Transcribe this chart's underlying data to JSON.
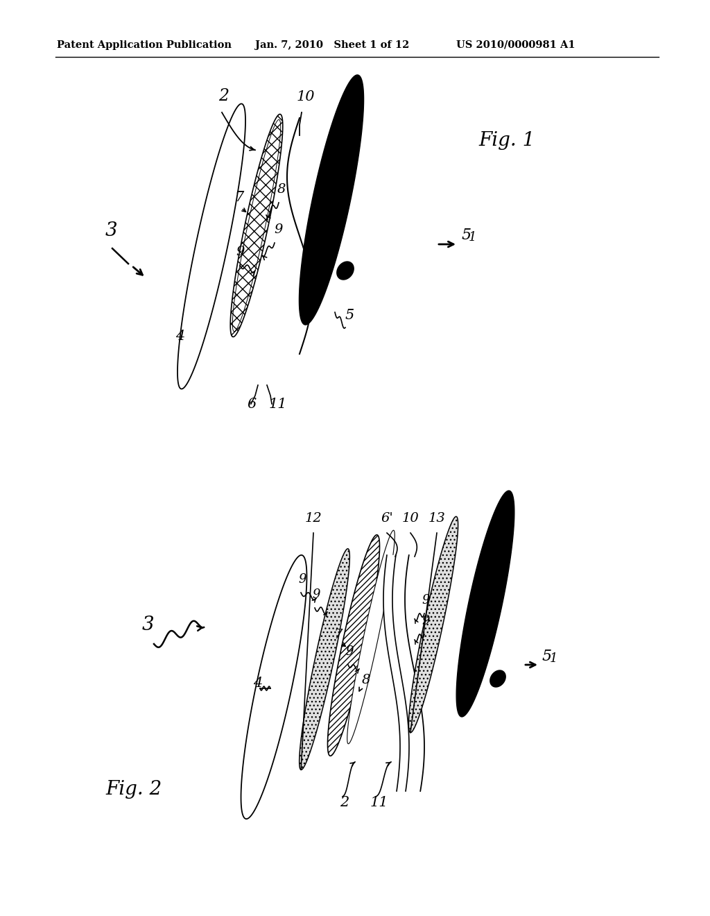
{
  "bg_color": "#ffffff",
  "header_left": "Patent Application Publication",
  "header_center": "Jan. 7, 2010   Sheet 1 of 12",
  "header_right": "US 2010/0000981 A1",
  "fig1_label": "Fig. 1",
  "fig2_label": "Fig. 2",
  "text_color": "#000000"
}
